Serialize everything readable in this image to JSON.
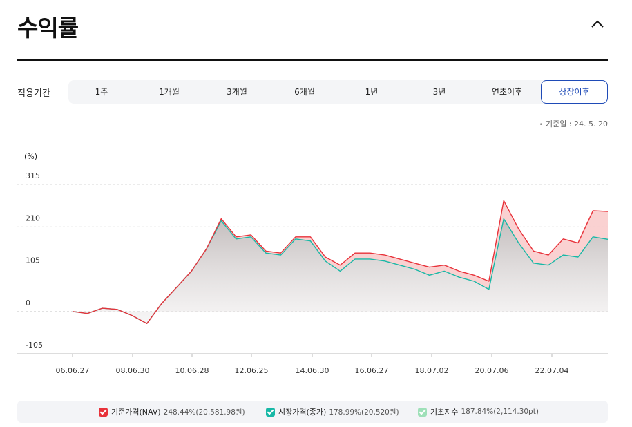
{
  "header": {
    "title": "수익률"
  },
  "period": {
    "label": "적용기간",
    "tabs": [
      "1주",
      "1개월",
      "3개월",
      "6개월",
      "1년",
      "3년",
      "연초이후",
      "상장이후"
    ],
    "active_index": 7
  },
  "base_date": "기준일 : 24. 5. 20",
  "colors": {
    "nav": "#e8323a",
    "market": "#17b8a6",
    "index": "#9ee0b8",
    "fill_pos": "#f9c9c9",
    "fill_neg": "#c9c4c4",
    "accent": "#1f4bb7"
  },
  "chart_data": {
    "type": "line",
    "ylabel": "(%)",
    "yticks": [
      "315",
      "210",
      "105",
      "0",
      "-105"
    ],
    "ylim": [
      -105,
      315
    ],
    "xticks": [
      "06.06.27",
      "08.06.30",
      "10.06.28",
      "12.06.25",
      "14.06.30",
      "16.06.27",
      "18.07.02",
      "20.07.06",
      "22.07.04"
    ],
    "x": [
      "06.06.27",
      "06.12",
      "07.06",
      "07.12",
      "08.06.30",
      "08.12",
      "09.06",
      "09.12",
      "10.06.28",
      "10.12",
      "11.06",
      "11.12",
      "12.06.25",
      "12.12",
      "13.06",
      "13.12",
      "14.06.30",
      "14.12",
      "15.06",
      "15.12",
      "16.06.27",
      "16.12",
      "17.06",
      "17.12",
      "18.07.02",
      "18.12",
      "19.06",
      "19.12",
      "20.07.06",
      "20.12",
      "21.06",
      "21.12",
      "22.07.04",
      "22.12",
      "23.06",
      "23.12",
      "24.05.20"
    ],
    "series": [
      {
        "name": "기준가격(NAV)",
        "values": [
          0,
          -5,
          8,
          5,
          -10,
          -30,
          20,
          60,
          100,
          155,
          230,
          185,
          190,
          150,
          145,
          185,
          185,
          135,
          115,
          145,
          145,
          140,
          130,
          120,
          110,
          115,
          100,
          90,
          75,
          275,
          205,
          150,
          140,
          180,
          170,
          250,
          248
        ]
      },
      {
        "name": "시장가격(종가)",
        "values": [
          0,
          -5,
          8,
          5,
          -10,
          -30,
          20,
          60,
          100,
          155,
          225,
          180,
          185,
          145,
          140,
          180,
          175,
          125,
          100,
          130,
          130,
          125,
          115,
          105,
          90,
          100,
          85,
          75,
          55,
          230,
          170,
          120,
          115,
          140,
          135,
          185,
          179
        ]
      }
    ]
  },
  "legend": [
    {
      "name": "기준가격(NAV)",
      "value": "248.44%(20,581.98원)",
      "color": "#e8323a"
    },
    {
      "name": "시장가격(종가)",
      "value": "178.99%(20,520원)",
      "color": "#17b8a6"
    },
    {
      "name": "기초지수",
      "value": "187.84%(2,114.30pt)",
      "color": "#9ee0b8"
    }
  ]
}
